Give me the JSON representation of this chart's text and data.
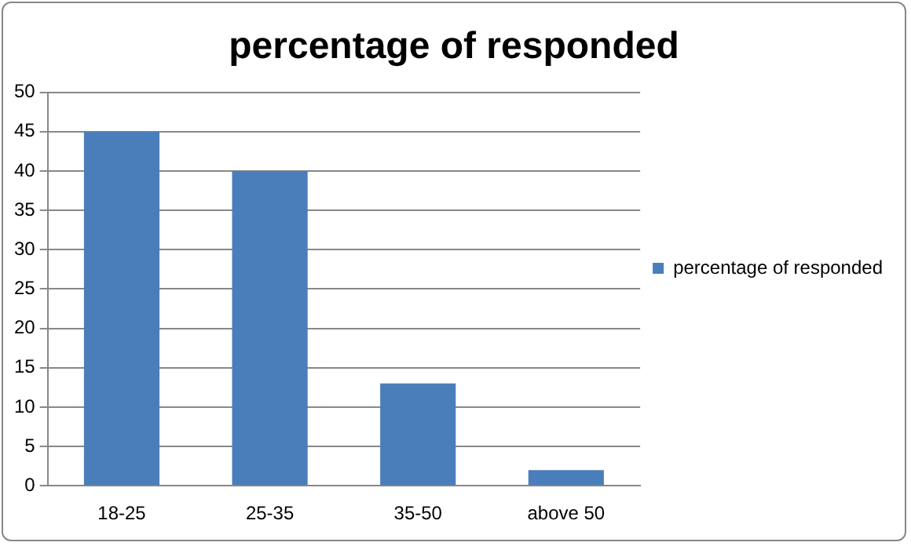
{
  "chart_data": {
    "type": "bar",
    "title": "percentage of responded",
    "categories": [
      "18-25",
      "25-35",
      "35-50",
      "above 50"
    ],
    "series": [
      {
        "name": "percentage of responded",
        "color": "#4a7ebb",
        "values": [
          45,
          40,
          13,
          2
        ]
      }
    ],
    "ylim": [
      0,
      50
    ],
    "yticks": [
      0,
      5,
      10,
      15,
      20,
      25,
      30,
      35,
      40,
      45,
      50
    ],
    "grid": "y",
    "legend": "right"
  }
}
